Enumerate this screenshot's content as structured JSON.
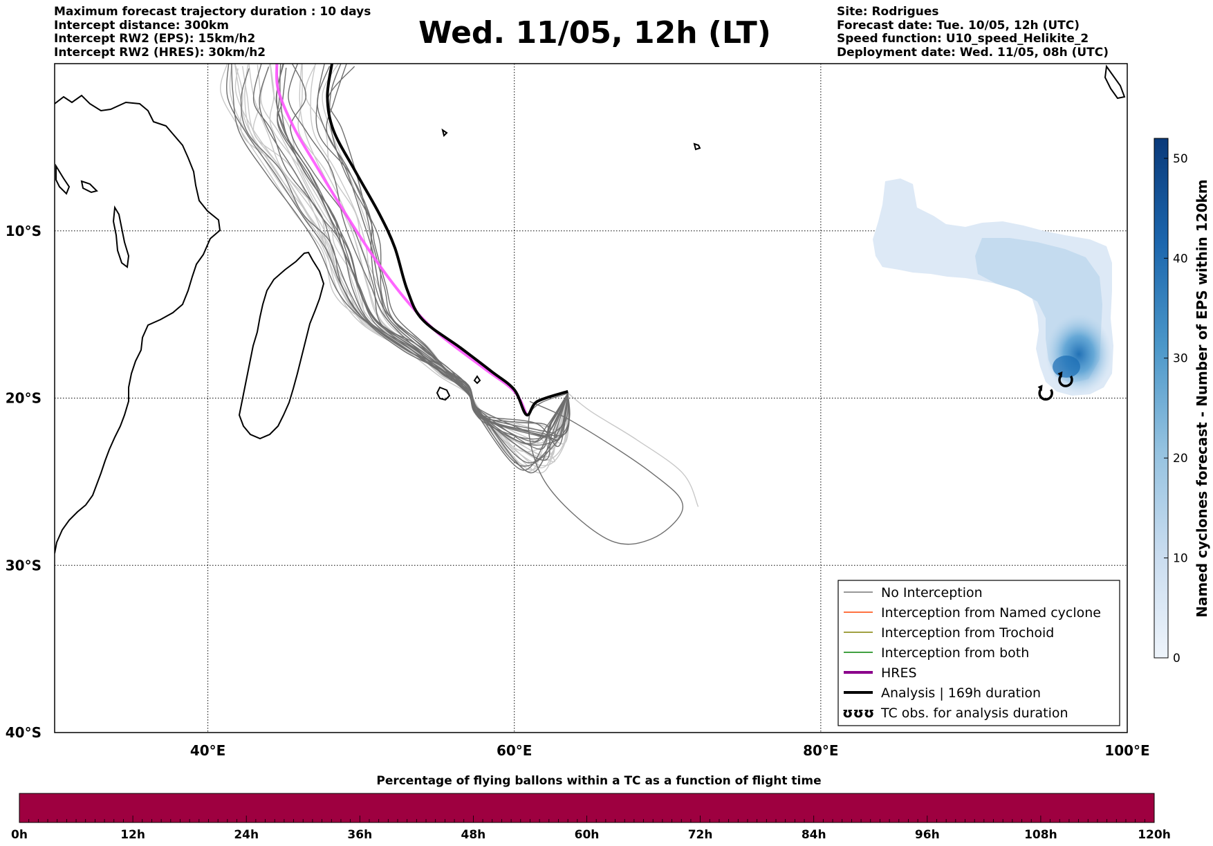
{
  "header": {
    "title": "Wed. 11/05, 12h (LT)",
    "left": [
      "Maximum forecast trajectory duration : 10 days",
      "Intercept distance: 300km",
      "Intercept RW2 (EPS):  15km/h2",
      "Intercept RW2 (HRES): 30km/h2"
    ],
    "right": [
      "Site: Rodrigues",
      "Forecast date: Tue. 10/05, 12h (UTC)",
      "Speed function: U10_speed_Helikite_2",
      "Deployment date: Wed. 11/05, 08h (UTC)"
    ]
  },
  "map": {
    "lon_range": [
      30,
      100
    ],
    "lat_range": [
      -40,
      0
    ],
    "lon_ticks": [
      {
        "value": 40,
        "label": "40°E"
      },
      {
        "value": 60,
        "label": "60°E"
      },
      {
        "value": 80,
        "label": "80°E"
      },
      {
        "value": 100,
        "label": "100°E"
      }
    ],
    "lat_ticks": [
      {
        "value": -10,
        "label": "10°S"
      },
      {
        "value": -20,
        "label": "20°S"
      },
      {
        "value": -30,
        "label": "30°S"
      },
      {
        "value": -40,
        "label": "40°S"
      }
    ],
    "hres_track": [
      [
        44.5,
        0
      ],
      [
        44.6,
        -1.6
      ],
      [
        45.6,
        -3.8
      ],
      [
        47.0,
        -6.0
      ],
      [
        49.0,
        -9.0
      ],
      [
        51.0,
        -11.8
      ],
      [
        53.0,
        -14.2
      ],
      [
        55.0,
        -16.1
      ],
      [
        58.0,
        -18.2
      ],
      [
        60.0,
        -19.6
      ],
      [
        60.8,
        -21.0
      ]
    ],
    "analysis_track": [
      [
        48.1,
        0
      ],
      [
        47.8,
        -2.0
      ],
      [
        48.2,
        -4.0
      ],
      [
        49.6,
        -6.4
      ],
      [
        51.2,
        -9.0
      ],
      [
        52.2,
        -11.0
      ],
      [
        53.0,
        -13.5
      ],
      [
        54.0,
        -15.3
      ],
      [
        56.5,
        -17.0
      ],
      [
        58.5,
        -18.4
      ],
      [
        60.0,
        -19.5
      ],
      [
        60.8,
        -21.0
      ],
      [
        61.5,
        -20.2
      ],
      [
        63.5,
        -19.6
      ]
    ],
    "tc_markers": [
      [
        94.7,
        -19.7
      ],
      [
        96.0,
        -18.9
      ]
    ]
  },
  "legend": {
    "items": [
      {
        "label": "No Interception",
        "color": "#777777",
        "width": 1.5
      },
      {
        "label": "Interception from Named cyclone",
        "color": "#ff4400",
        "width": 1.5
      },
      {
        "label": "Interception from Trochoid",
        "color": "#808000",
        "width": 1.5
      },
      {
        "label": "Interception from both",
        "color": "#008000",
        "width": 1.5
      },
      {
        "label": "HRES",
        "color": "#8b008b",
        "width": 4
      },
      {
        "label": "Analysis | 169h duration",
        "color": "#000000",
        "width": 4
      },
      {
        "label": "TC obs. for analysis duration",
        "color": "#000000",
        "width": 0,
        "symbol": "ʊʊʊ"
      }
    ]
  },
  "colorbar": {
    "label": "Named cyclones forecast - Number of EPS within 120km",
    "min": 0,
    "max": 52,
    "ticks": [
      0,
      10,
      20,
      30,
      40,
      50
    ],
    "color_low": "#dde9f6",
    "color_high": "#0a3a7a"
  },
  "timebar": {
    "title": "Percentage of flying ballons within a TC as a function of flight time",
    "color": "#9e0040",
    "ticks": [
      "0h",
      "12h",
      "24h",
      "36h",
      "48h",
      "60h",
      "72h",
      "84h",
      "96h",
      "108h",
      "120h"
    ]
  }
}
